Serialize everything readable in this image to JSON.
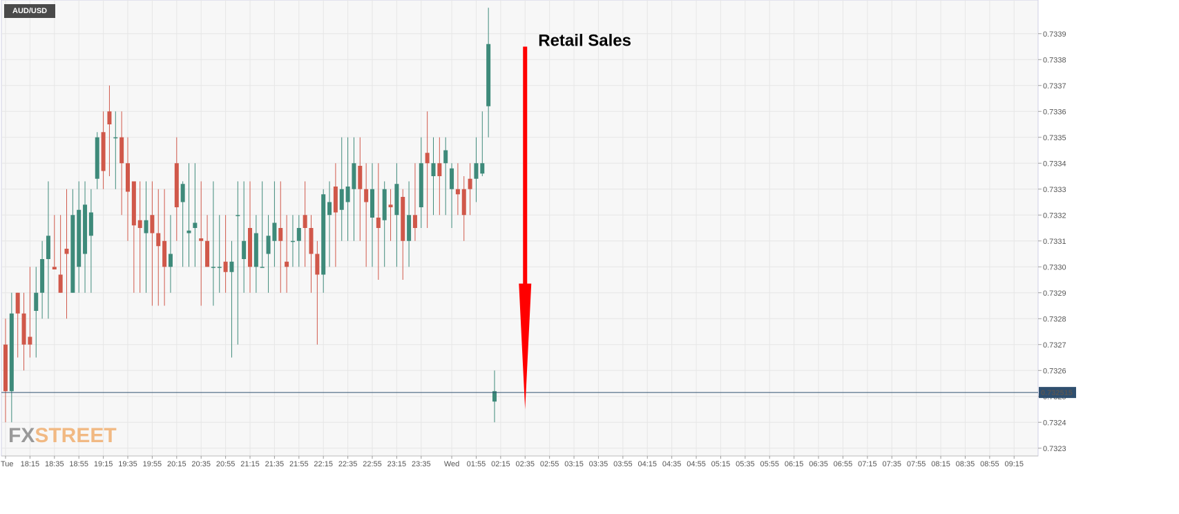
{
  "instrument": "AUD/USD",
  "logo": {
    "part1": "FX",
    "part2": "STREET"
  },
  "colors": {
    "up": "#3e8a7a",
    "down": "#d0584a",
    "grid": "#e6e6e6",
    "plot_bg": "#f7f7f7",
    "price_line": "#2f4f6f",
    "arrow": "#ff0000",
    "logo1": "#999999",
    "logo2": "#f1b983"
  },
  "chart_data": {
    "type": "candlestick",
    "y_ticks": [
      "0.7323",
      "0.7324",
      "0.7325",
      "0.7326",
      "0.7327",
      "0.7328",
      "0.7329",
      "0.7330",
      "0.7331",
      "0.7332",
      "0.7333",
      "0.7334",
      "0.7335",
      "0.7336",
      "0.7337",
      "0.7338",
      "0.7339"
    ],
    "ylim": [
      0.73227,
      0.73403
    ],
    "x_ticks": [
      {
        "label": "Tue",
        "i": 0
      },
      {
        "label": "18:15",
        "i": 4
      },
      {
        "label": "18:35",
        "i": 8
      },
      {
        "label": "18:55",
        "i": 12
      },
      {
        "label": "19:15",
        "i": 16
      },
      {
        "label": "19:35",
        "i": 20
      },
      {
        "label": "19:55",
        "i": 24
      },
      {
        "label": "20:15",
        "i": 28
      },
      {
        "label": "20:35",
        "i": 32
      },
      {
        "label": "20:55",
        "i": 36
      },
      {
        "label": "21:15",
        "i": 40
      },
      {
        "label": "21:35",
        "i": 44
      },
      {
        "label": "21:55",
        "i": 48
      },
      {
        "label": "22:15",
        "i": 52
      },
      {
        "label": "22:35",
        "i": 56
      },
      {
        "label": "22:55",
        "i": 60
      },
      {
        "label": "23:15",
        "i": 64
      },
      {
        "label": "23:35",
        "i": 68
      },
      {
        "label": "Wed",
        "i": 73
      },
      {
        "label": "01:55",
        "i": 77
      },
      {
        "label": "02:15",
        "i": 81
      },
      {
        "label": "02:35",
        "i": 85
      },
      {
        "label": "02:55",
        "i": 89
      },
      {
        "label": "03:15",
        "i": 93
      },
      {
        "label": "03:35",
        "i": 97
      },
      {
        "label": "03:55",
        "i": 101
      },
      {
        "label": "04:15",
        "i": 105
      },
      {
        "label": "04:35",
        "i": 109
      },
      {
        "label": "04:55",
        "i": 113
      },
      {
        "label": "05:15",
        "i": 117
      },
      {
        "label": "05:35",
        "i": 121
      },
      {
        "label": "05:55",
        "i": 125
      },
      {
        "label": "06:15",
        "i": 129
      },
      {
        "label": "06:35",
        "i": 133
      },
      {
        "label": "06:55",
        "i": 137
      },
      {
        "label": "07:15",
        "i": 141
      },
      {
        "label": "07:35",
        "i": 145
      },
      {
        "label": "07:55",
        "i": 149
      },
      {
        "label": "08:15",
        "i": 153
      },
      {
        "label": "08:35",
        "i": 157
      },
      {
        "label": "08:55",
        "i": 161
      },
      {
        "label": "09:15",
        "i": 165
      }
    ],
    "candles": [
      [
        0.7327,
        0.7328,
        0.7324,
        0.73252
      ],
      [
        0.73252,
        0.7329,
        0.7324,
        0.73282
      ],
      [
        0.7329,
        0.7329,
        0.73265,
        0.73282
      ],
      [
        0.73282,
        0.7329,
        0.7326,
        0.7327
      ],
      [
        0.73273,
        0.733,
        0.73265,
        0.7327
      ],
      [
        0.73283,
        0.733,
        0.73265,
        0.7329
      ],
      [
        0.7329,
        0.7331,
        0.7328,
        0.73303
      ],
      [
        0.73303,
        0.73333,
        0.7328,
        0.73312
      ],
      [
        0.733,
        0.7332,
        0.733,
        0.73299
      ],
      [
        0.73297,
        0.7332,
        0.7329,
        0.7329
      ],
      [
        0.73307,
        0.7333,
        0.7328,
        0.73305
      ],
      [
        0.7329,
        0.7333,
        0.7329,
        0.7332
      ],
      [
        0.733,
        0.73333,
        0.7329,
        0.73322
      ],
      [
        0.73305,
        0.73333,
        0.7329,
        0.73324
      ],
      [
        0.73312,
        0.7333,
        0.7329,
        0.73321
      ],
      [
        0.73334,
        0.73352,
        0.7333,
        0.7335
      ],
      [
        0.73352,
        0.7336,
        0.7333,
        0.73337
      ],
      [
        0.7336,
        0.7337,
        0.73335,
        0.73355
      ],
      [
        0.7335,
        0.7336,
        0.7333,
        0.7335
      ],
      [
        0.7335,
        0.7336,
        0.7332,
        0.7334
      ],
      [
        0.7334,
        0.7335,
        0.7331,
        0.73329
      ],
      [
        0.73333,
        0.73333,
        0.7329,
        0.73316
      ],
      [
        0.73318,
        0.73333,
        0.7329,
        0.73315
      ],
      [
        0.73313,
        0.73333,
        0.7329,
        0.73318
      ],
      [
        0.7332,
        0.73333,
        0.73285,
        0.73313
      ],
      [
        0.73313,
        0.7333,
        0.73285,
        0.73308
      ],
      [
        0.7331,
        0.7333,
        0.73285,
        0.733
      ],
      [
        0.733,
        0.7332,
        0.7329,
        0.73305
      ],
      [
        0.7334,
        0.7335,
        0.7331,
        0.73323
      ],
      [
        0.73325,
        0.73333,
        0.733,
        0.73332
      ],
      [
        0.73313,
        0.7334,
        0.733,
        0.73314
      ],
      [
        0.73315,
        0.7334,
        0.733,
        0.73317
      ],
      [
        0.73311,
        0.73333,
        0.73285,
        0.7331
      ],
      [
        0.7331,
        0.7332,
        0.733,
        0.733
      ],
      [
        0.733,
        0.73333,
        0.73285,
        0.733
      ],
      [
        0.733,
        0.7332,
        0.7329,
        0.733
      ],
      [
        0.73302,
        0.7332,
        0.7329,
        0.73298
      ],
      [
        0.73298,
        0.7331,
        0.73265,
        0.73302
      ],
      [
        0.7332,
        0.73333,
        0.7327,
        0.7332
      ],
      [
        0.73303,
        0.73333,
        0.7329,
        0.7331
      ],
      [
        0.73315,
        0.73333,
        0.7329,
        0.733
      ],
      [
        0.733,
        0.7332,
        0.7329,
        0.73313
      ],
      [
        0.733,
        0.73333,
        0.733,
        0.733
      ],
      [
        0.73305,
        0.7332,
        0.7329,
        0.73312
      ],
      [
        0.7331,
        0.73333,
        0.733,
        0.73317
      ],
      [
        0.73315,
        0.73333,
        0.7329,
        0.7331
      ],
      [
        0.73302,
        0.7332,
        0.7329,
        0.733
      ],
      [
        0.7331,
        0.7332,
        0.733,
        0.7331
      ],
      [
        0.7331,
        0.7332,
        0.733,
        0.73315
      ],
      [
        0.7332,
        0.73333,
        0.733,
        0.73315
      ],
      [
        0.73315,
        0.7332,
        0.7329,
        0.73305
      ],
      [
        0.73305,
        0.7331,
        0.7327,
        0.73297
      ],
      [
        0.73297,
        0.7333,
        0.7329,
        0.73328
      ],
      [
        0.7332,
        0.73333,
        0.733,
        0.73325
      ],
      [
        0.73331,
        0.7334,
        0.733,
        0.73321
      ],
      [
        0.73322,
        0.7335,
        0.7331,
        0.7333
      ],
      [
        0.73325,
        0.7335,
        0.7331,
        0.73331
      ],
      [
        0.7333,
        0.7335,
        0.7331,
        0.7334
      ],
      [
        0.73339,
        0.7335,
        0.7331,
        0.7333
      ],
      [
        0.7333,
        0.7334,
        0.733,
        0.73325
      ],
      [
        0.73319,
        0.7334,
        0.733,
        0.7333
      ],
      [
        0.73319,
        0.7334,
        0.73295,
        0.73315
      ],
      [
        0.73318,
        0.73333,
        0.733,
        0.7333
      ],
      [
        0.73324,
        0.7333,
        0.7331,
        0.73323
      ],
      [
        0.7332,
        0.7334,
        0.733,
        0.73332
      ],
      [
        0.73327,
        0.7333,
        0.73295,
        0.7331
      ],
      [
        0.7331,
        0.73333,
        0.733,
        0.7332
      ],
      [
        0.7332,
        0.7334,
        0.7331,
        0.73315
      ],
      [
        0.73323,
        0.7335,
        0.73315,
        0.7334
      ],
      [
        0.73344,
        0.7336,
        0.73315,
        0.7334
      ],
      [
        0.73335,
        0.7335,
        0.7332,
        0.7334
      ],
      [
        0.7334,
        0.7335,
        0.7332,
        0.73335
      ],
      [
        0.7334,
        0.7335,
        0.7332,
        0.73345
      ],
      [
        0.7333,
        0.7334,
        0.73315,
        0.73338
      ],
      [
        0.7333,
        0.7334,
        0.7332,
        0.73328
      ],
      [
        0.7333,
        0.73335,
        0.7331,
        0.7332
      ],
      [
        0.73334,
        0.7334,
        0.7332,
        0.7333
      ],
      [
        0.73334,
        0.7335,
        0.73325,
        0.7334
      ],
      [
        0.73336,
        0.7336,
        0.73335,
        0.7334
      ],
      [
        0.73362,
        0.734,
        0.7335,
        0.73386
      ],
      [
        0.73248,
        0.7326,
        0.7324,
        0.73252
      ]
    ],
    "current_price": 0.732515,
    "current_price_label": "0.732515",
    "annotation": {
      "text": "Retail Sales",
      "arrow_x_index": 85,
      "arrow_from": 0.73385,
      "arrow_to": 0.73245
    }
  }
}
